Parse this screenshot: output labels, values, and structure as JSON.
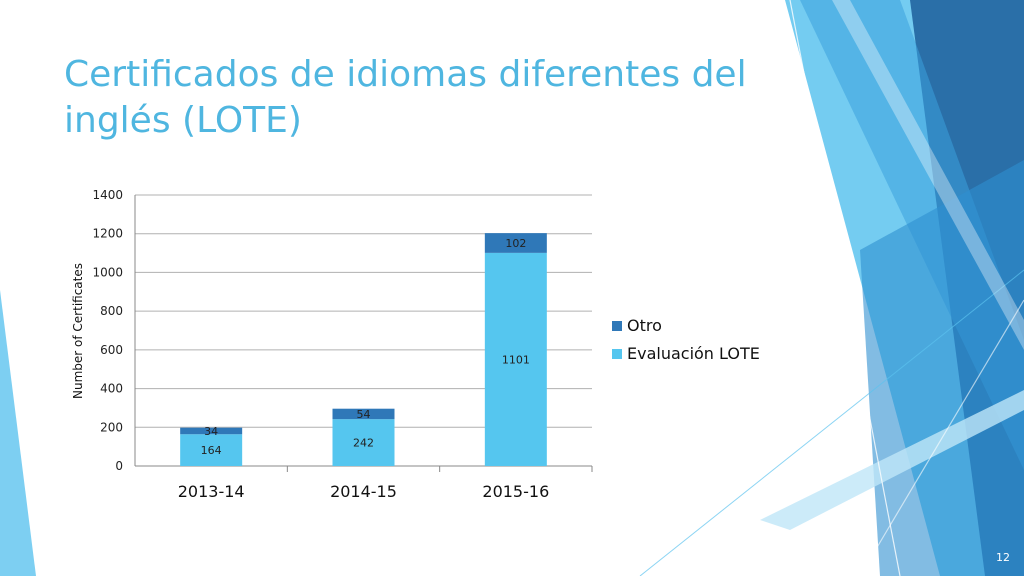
{
  "slide": {
    "title": "Certificados de idiomas diferentes del inglés (LOTE)",
    "page_number": "12",
    "colors": {
      "title": "#4fb6e0",
      "deco_dark": "#2a6fa8",
      "deco_mid": "#3aa0dc",
      "deco_light": "#5cc3ef"
    }
  },
  "chart_data": {
    "type": "bar",
    "stacked": true,
    "categories": [
      "2013-14",
      "2014-15",
      "2015-16"
    ],
    "series": [
      {
        "name": "Evaluación LOTE",
        "values": [
          164,
          242,
          1101
        ],
        "color": "#55c6ef"
      },
      {
        "name": "Otro",
        "values": [
          34,
          54,
          102
        ],
        "color": "#2f78b8"
      }
    ],
    "ylabel": "Number of Certificates",
    "xlabel": "",
    "ylim": [
      0,
      1400
    ],
    "yticks": [
      0,
      200,
      400,
      600,
      800,
      1000,
      1200,
      1400
    ],
    "grid": true,
    "legend_position": "right"
  }
}
